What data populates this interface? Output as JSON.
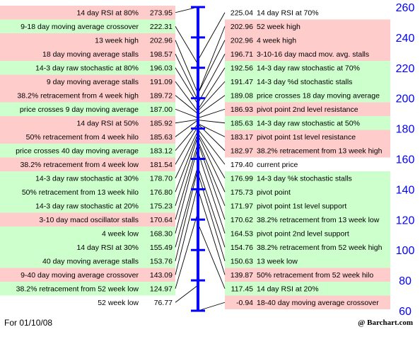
{
  "chart_data": {
    "type": "table",
    "axis": {
      "min": 60,
      "max": 260,
      "ticks": [
        260,
        240,
        220,
        200,
        180,
        160,
        140,
        120,
        100,
        80,
        60
      ]
    },
    "colors": {
      "up_row": "#ffcccc",
      "down_row": "#ccffcc",
      "white_row": "#ffffff",
      "axis": "#0000ff",
      "connector": "#000000"
    },
    "left": [
      {
        "label": "14 day RSI at 80%",
        "value": "273.95",
        "color": "red"
      },
      {
        "label": "9-18 day moving average crossover",
        "value": "222.31",
        "color": "green"
      },
      {
        "label": "13 week high",
        "value": "202.96",
        "color": "red"
      },
      {
        "label": "18 day moving average stalls",
        "value": "198.57",
        "color": "red"
      },
      {
        "label": "14-3 day raw stochastic at 80%",
        "value": "196.03",
        "color": "green"
      },
      {
        "label": "9 day moving average stalls",
        "value": "191.09",
        "color": "red"
      },
      {
        "label": "38.2% retracement from 4 week high",
        "value": "189.72",
        "color": "red"
      },
      {
        "label": "price crosses 9 day moving average",
        "value": "187.00",
        "color": "green"
      },
      {
        "label": "14 day RSI at 50%",
        "value": "185.92",
        "color": "red"
      },
      {
        "label": "50% retracement from 4 week hilo",
        "value": "185.63",
        "color": "red"
      },
      {
        "label": "price crosses 40 day moving average",
        "value": "183.12",
        "color": "green"
      },
      {
        "label": "38.2% retracement from 4 week low",
        "value": "181.54",
        "color": "red"
      },
      {
        "label": "14-3 day raw stochastic at 30%",
        "value": "178.70",
        "color": "green"
      },
      {
        "label": "50% retracement from 13 week hilo",
        "value": "176.80",
        "color": "green"
      },
      {
        "label": "14-3 day raw stochastic at 20%",
        "value": "175.23",
        "color": "green"
      },
      {
        "label": "3-10 day macd oscillator stalls",
        "value": "170.64",
        "color": "red"
      },
      {
        "label": "4 week low",
        "value": "168.30",
        "color": "green"
      },
      {
        "label": "14 day RSI at 30%",
        "value": "155.49",
        "color": "green"
      },
      {
        "label": "40 day moving average stalls",
        "value": "153.76",
        "color": "green"
      },
      {
        "label": "9-40 day moving average crossover",
        "value": "143.09",
        "color": "red"
      },
      {
        "label": "38.2% retracement from 52 week low",
        "value": "124.97",
        "color": "green"
      },
      {
        "label": "52 week low",
        "value": "76.77",
        "color": "white"
      }
    ],
    "right": [
      {
        "label": "14 day RSI at 70%",
        "value": "225.04",
        "color": "white"
      },
      {
        "label": "52 week high",
        "value": "202.96",
        "color": "red"
      },
      {
        "label": "4 week high",
        "value": "202.96",
        "color": "red"
      },
      {
        "label": "3-10-16 day macd mov. avg. stalls",
        "value": "196.71",
        "color": "red"
      },
      {
        "label": "14-3 day raw stochastic at 70%",
        "value": "192.56",
        "color": "green"
      },
      {
        "label": "14-3 day %d stochastic stalls",
        "value": "191.47",
        "color": "green"
      },
      {
        "label": "price crosses 18 day moving average",
        "value": "189.08",
        "color": "green"
      },
      {
        "label": "pivot point 2nd level resistance",
        "value": "186.93",
        "color": "red"
      },
      {
        "label": "14-3 day raw stochastic at 50%",
        "value": "185.63",
        "color": "green"
      },
      {
        "label": "pivot point 1st level resistance",
        "value": "183.17",
        "color": "red"
      },
      {
        "label": "38.2% retracement from 13 week high",
        "value": "182.97",
        "color": "red"
      },
      {
        "label": "current price",
        "value": "179.40",
        "color": "white"
      },
      {
        "label": "14-3 day %k stochastic stalls",
        "value": "176.99",
        "color": "green"
      },
      {
        "label": "pivot point",
        "value": "175.73",
        "color": "green"
      },
      {
        "label": "pivot point 1st level support",
        "value": "171.97",
        "color": "green"
      },
      {
        "label": "38.2% retracement from 13 week low",
        "value": "170.62",
        "color": "green"
      },
      {
        "label": "pivot point 2nd level support",
        "value": "164.53",
        "color": "green"
      },
      {
        "label": "38.2% retracement from 52 week high",
        "value": "154.76",
        "color": "green"
      },
      {
        "label": "13 week low",
        "value": "150.63",
        "color": "green"
      },
      {
        "label": "50% retracement from 52 week hilo",
        "value": "139.87",
        "color": "red"
      },
      {
        "label": "14 day RSI at 20%",
        "value": "117.45",
        "color": "green"
      },
      {
        "label": "18-40 day moving average crossover",
        "value": "-0.94",
        "color": "red"
      }
    ]
  },
  "footer": {
    "date": "For 01/10/08",
    "brand": "@ Barchart.com"
  }
}
